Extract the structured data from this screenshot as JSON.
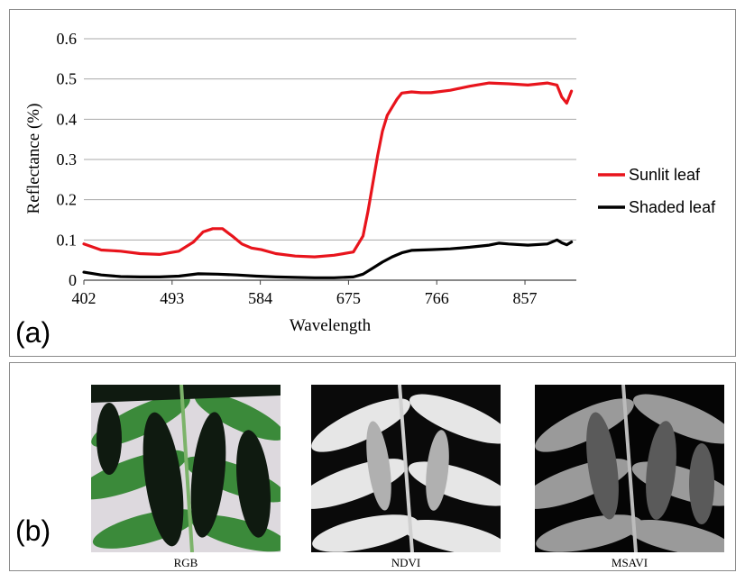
{
  "panel_a": {
    "label": "(a)"
  },
  "panel_b": {
    "label": "(b)",
    "images": [
      {
        "caption": "RGB",
        "kind": "rgb"
      },
      {
        "caption": "NDVI",
        "kind": "ndvi"
      },
      {
        "caption": "MSAVI",
        "kind": "msavi"
      }
    ]
  },
  "chart_data": {
    "type": "line",
    "title": "",
    "xlabel": "Wavelength",
    "ylabel": "Reflectance (%)",
    "xlim": [
      402,
      910
    ],
    "ylim": [
      0,
      0.6
    ],
    "xticks": [
      402,
      493,
      584,
      675,
      766,
      857
    ],
    "yticks": [
      0,
      0.1,
      0.2,
      0.3,
      0.4,
      0.5,
      0.6
    ],
    "ytick_labels": [
      "0",
      "0.1",
      "0.2",
      "0.3",
      "0.4",
      "0.5",
      "0.6"
    ],
    "grid": true,
    "legend_position": "right",
    "series": [
      {
        "name": "Sunlit leaf",
        "color": "#e8141c",
        "x": [
          402,
          420,
          440,
          460,
          480,
          500,
          515,
          525,
          535,
          545,
          555,
          565,
          575,
          585,
          600,
          620,
          640,
          660,
          680,
          690,
          695,
          700,
          705,
          710,
          715,
          720,
          725,
          730,
          740,
          750,
          760,
          780,
          800,
          820,
          840,
          860,
          880,
          890,
          895,
          900,
          905
        ],
        "y": [
          0.09,
          0.075,
          0.072,
          0.066,
          0.064,
          0.072,
          0.095,
          0.12,
          0.128,
          0.128,
          0.11,
          0.09,
          0.08,
          0.076,
          0.066,
          0.06,
          0.058,
          0.062,
          0.07,
          0.11,
          0.17,
          0.24,
          0.31,
          0.37,
          0.41,
          0.43,
          0.45,
          0.465,
          0.468,
          0.466,
          0.466,
          0.472,
          0.482,
          0.49,
          0.488,
          0.485,
          0.49,
          0.485,
          0.455,
          0.44,
          0.47
        ]
      },
      {
        "name": "Shaded leaf",
        "color": "#000000",
        "x": [
          402,
          420,
          440,
          460,
          480,
          500,
          520,
          540,
          560,
          580,
          600,
          620,
          640,
          660,
          680,
          690,
          700,
          710,
          720,
          730,
          740,
          760,
          780,
          800,
          820,
          830,
          840,
          860,
          880,
          890,
          895,
          900,
          905
        ],
        "y": [
          0.02,
          0.013,
          0.009,
          0.008,
          0.008,
          0.01,
          0.016,
          0.015,
          0.013,
          0.01,
          0.008,
          0.007,
          0.006,
          0.006,
          0.008,
          0.015,
          0.03,
          0.045,
          0.058,
          0.068,
          0.074,
          0.076,
          0.078,
          0.082,
          0.087,
          0.092,
          0.09,
          0.087,
          0.09,
          0.1,
          0.093,
          0.088,
          0.095
        ]
      }
    ]
  }
}
